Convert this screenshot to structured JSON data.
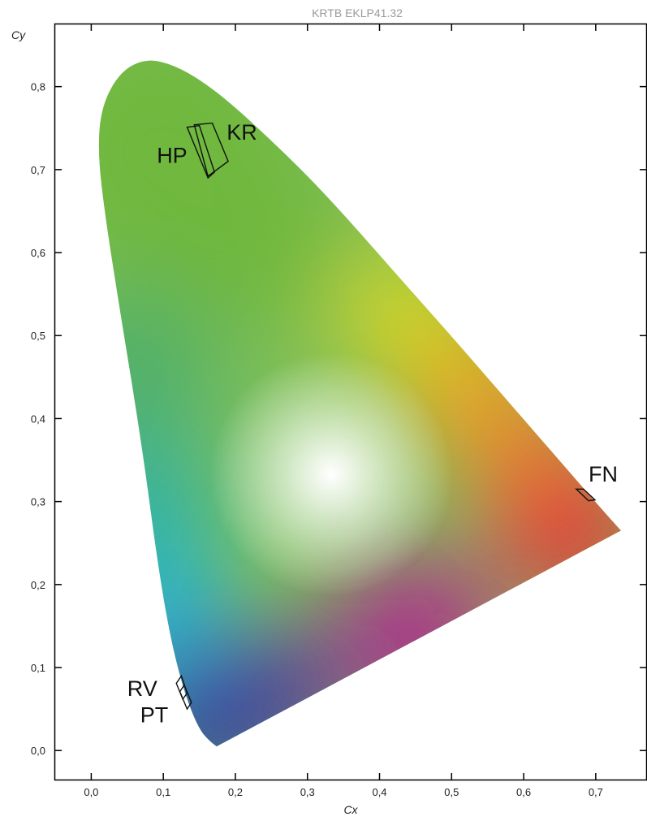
{
  "chart_data": {
    "type": "scatter",
    "title": "KRTB EKLP41.32",
    "xlabel": "Cx",
    "ylabel": "Cy",
    "xlim": [
      -0.05,
      0.77
    ],
    "ylim": [
      -0.035,
      0.875
    ],
    "x_ticks": [
      0.0,
      0.1,
      0.2,
      0.3,
      0.4,
      0.5,
      0.6,
      0.7
    ],
    "y_ticks": [
      0.0,
      0.1,
      0.2,
      0.3,
      0.4,
      0.5,
      0.6,
      0.7,
      0.8
    ],
    "x_tick_labels": [
      "0,0",
      "0,1",
      "0,2",
      "0,3",
      "0,4",
      "0,5",
      "0,6",
      "0,7"
    ],
    "y_tick_labels": [
      "0,0",
      "0,1",
      "0,2",
      "0,3",
      "0,4",
      "0,5",
      "0,6",
      "0,7",
      "0,8"
    ],
    "grid": false,
    "white_point": [
      0.333,
      0.333
    ],
    "spectral_locus": [
      [
        0.174,
        0.005
      ],
      [
        0.165,
        0.011
      ],
      [
        0.152,
        0.023
      ],
      [
        0.139,
        0.047
      ],
      [
        0.124,
        0.086
      ],
      [
        0.108,
        0.144
      ],
      [
        0.091,
        0.233
      ],
      [
        0.075,
        0.338
      ],
      [
        0.058,
        0.435
      ],
      [
        0.039,
        0.535
      ],
      [
        0.02,
        0.64
      ],
      [
        0.009,
        0.72
      ],
      [
        0.014,
        0.776
      ],
      [
        0.04,
        0.818
      ],
      [
        0.076,
        0.834
      ],
      [
        0.115,
        0.826
      ],
      [
        0.155,
        0.806
      ],
      [
        0.196,
        0.778
      ],
      [
        0.245,
        0.739
      ],
      [
        0.295,
        0.697
      ],
      [
        0.347,
        0.649
      ],
      [
        0.4,
        0.597
      ],
      [
        0.453,
        0.545
      ],
      [
        0.51,
        0.489
      ],
      [
        0.562,
        0.437
      ],
      [
        0.615,
        0.384
      ],
      [
        0.665,
        0.334
      ],
      [
        0.705,
        0.294
      ],
      [
        0.735,
        0.265
      ]
    ],
    "gradient_colors": {
      "blue": "#2c4da3",
      "cyan": "#19b3ea",
      "green": "#6fb83e",
      "yellow": "#e2dc1a",
      "orange": "#f7a21b",
      "red": "#ea2a3a",
      "magenta": "#b0268f",
      "white": "#ffffff"
    },
    "regions": [
      {
        "label": "HP",
        "polygon": [
          [
            0.133,
            0.751
          ],
          [
            0.15,
            0.753
          ],
          [
            0.171,
            0.697
          ],
          [
            0.162,
            0.69
          ]
        ],
        "label_pos": [
          0.091,
          0.708
        ]
      },
      {
        "label": "KR",
        "polygon": [
          [
            0.143,
            0.754
          ],
          [
            0.168,
            0.756
          ],
          [
            0.19,
            0.71
          ],
          [
            0.162,
            0.692
          ]
        ],
        "label_pos": [
          0.188,
          0.736
        ]
      },
      {
        "label": "RV",
        "polygon": [
          [
            0.118,
            0.081
          ],
          [
            0.125,
            0.09
          ],
          [
            0.133,
            0.069
          ],
          [
            0.127,
            0.062
          ]
        ],
        "label_pos": [
          0.05,
          0.066
        ]
      },
      {
        "label": "PT",
        "polygon": [
          [
            0.123,
            0.071
          ],
          [
            0.129,
            0.079
          ],
          [
            0.139,
            0.058
          ],
          [
            0.133,
            0.05
          ]
        ],
        "label_pos": [
          0.068,
          0.034
        ]
      },
      {
        "label": "FN",
        "polygon": [
          [
            0.673,
            0.315
          ],
          [
            0.683,
            0.315
          ],
          [
            0.699,
            0.302
          ],
          [
            0.69,
            0.301
          ]
        ],
        "label_pos": [
          0.69,
          0.324
        ]
      }
    ]
  }
}
